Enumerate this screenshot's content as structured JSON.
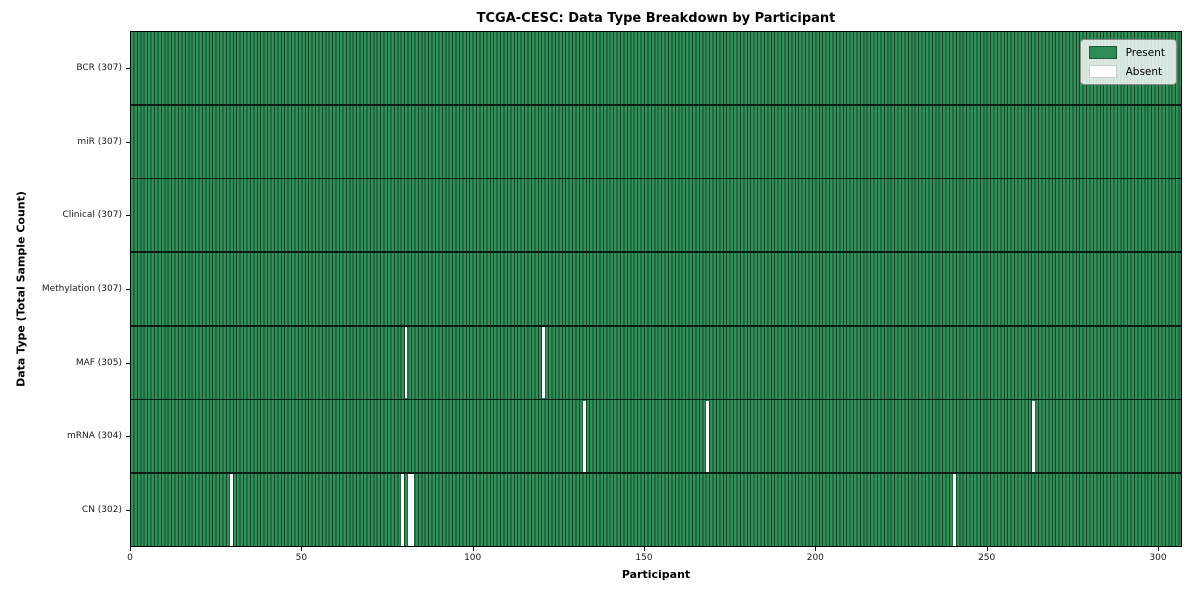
{
  "figure": {
    "title": "TCGA-CESC: Data Type Breakdown by Participant"
  },
  "chart_data": {
    "type": "heatmap",
    "title": "TCGA-CESC: Data Type Breakdown by Participant",
    "xlabel": "Participant",
    "ylabel": "Data Type (Total Sample Count)",
    "n_participants": 307,
    "x_range": [
      0,
      307
    ],
    "x_ticks": [
      0,
      50,
      100,
      150,
      200,
      250,
      300
    ],
    "grid": false,
    "legend_position": "upper right",
    "legend_entries": [
      {
        "label": "Present",
        "color": "#2e8b57"
      },
      {
        "label": "Absent",
        "color": "#ffffff"
      }
    ],
    "colors": {
      "cell_fill": "#2f9159",
      "cell_edge": "#164226",
      "row_divider": "#0c1c10",
      "absent": "#ffffff",
      "plot_border": "#000000"
    },
    "rows": [
      {
        "label": "BCR (307)",
        "data_type": "BCR",
        "present_count": 307,
        "total": 307,
        "absent_participants": []
      },
      {
        "label": "miR (307)",
        "data_type": "miR",
        "present_count": 307,
        "total": 307,
        "absent_participants": []
      },
      {
        "label": "Clinical (307)",
        "data_type": "Clinical",
        "present_count": 307,
        "total": 307,
        "absent_participants": []
      },
      {
        "label": "Methylation (307)",
        "data_type": "Methylation",
        "present_count": 307,
        "total": 307,
        "absent_participants": []
      },
      {
        "label": "MAF (305)",
        "data_type": "MAF",
        "present_count": 305,
        "total": 307,
        "absent_participants": [
          80,
          120
        ]
      },
      {
        "label": "mRNA (304)",
        "data_type": "mRNA",
        "present_count": 304,
        "total": 307,
        "absent_participants": [
          132,
          168,
          263
        ]
      },
      {
        "label": "CN (302)",
        "data_type": "CN",
        "present_count": 302,
        "total": 307,
        "absent_participants": [
          29,
          79,
          81,
          82,
          240
        ]
      }
    ]
  }
}
